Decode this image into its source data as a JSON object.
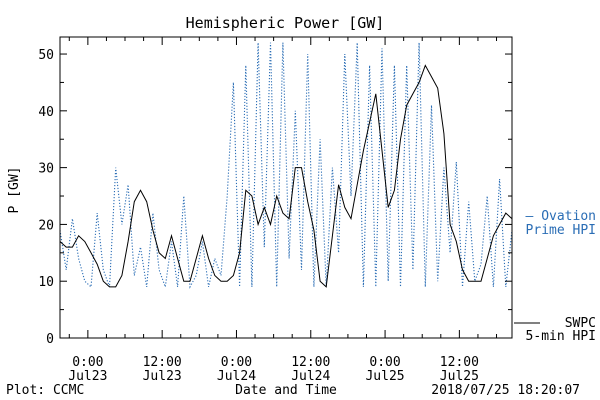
{
  "chart_data": {
    "type": "line",
    "title": "Hemispheric Power [GW]",
    "xlabel": "Date and Time",
    "ylabel": "P [GW]",
    "ylim": [
      0,
      53
    ],
    "yticks": [
      0,
      10,
      20,
      30,
      40,
      50
    ],
    "xlim_hours": [
      -4.5,
      68.5
    ],
    "x_ticks": [
      {
        "hour": 0,
        "time": "0:00",
        "date": "Jul23"
      },
      {
        "hour": 12,
        "time": "12:00",
        "date": "Jul23"
      },
      {
        "hour": 24,
        "time": "0:00",
        "date": "Jul24"
      },
      {
        "hour": 36,
        "time": "12:00",
        "date": "Jul24"
      },
      {
        "hour": 48,
        "time": "0:00",
        "date": "Jul25"
      },
      {
        "hour": 60,
        "time": "12:00",
        "date": "Jul25"
      }
    ],
    "legend": [
      {
        "line1": "— Ovation",
        "line2": "Prime HPI",
        "color": "#2a6db5",
        "style": "dotted"
      },
      {
        "line1": "SWPC",
        "line2": "5-min HPI",
        "color": "#000000",
        "style": "solid"
      }
    ],
    "series": [
      {
        "name": "SWPC 5-min HPI",
        "color": "#000000",
        "style": "solid",
        "x": [
          -4.5,
          -3.5,
          -2.5,
          -1.5,
          -0.5,
          0.5,
          1.5,
          2.5,
          3.5,
          4.5,
          5.5,
          6.5,
          7.5,
          8.5,
          9.5,
          10.5,
          11.5,
          12.5,
          13.5,
          14.5,
          15.5,
          16.5,
          17.5,
          18.5,
          19.5,
          20.5,
          21.5,
          22.5,
          23.5,
          24.5,
          25.5,
          26.5,
          27.5,
          28.5,
          29.5,
          30.5,
          31.5,
          32.5,
          33.5,
          34.5,
          35.5,
          36.5,
          37.5,
          38.5,
          39.5,
          40.5,
          41.5,
          42.5,
          43.5,
          44.5,
          45.5,
          46.5,
          47.5,
          48.5,
          49.5,
          50.5,
          51.5,
          52.5,
          53.5,
          54.5,
          55.5,
          56.5,
          57.5,
          58.5,
          59.5,
          60.5,
          61.5,
          62.5,
          63.5,
          64.5,
          65.5,
          66.5,
          67.5,
          68.5
        ],
        "y": [
          17,
          16,
          16,
          18,
          17,
          15,
          13,
          10,
          9,
          9,
          11,
          17,
          24,
          26,
          24,
          19,
          15,
          14,
          18,
          14,
          10,
          10,
          14,
          18,
          14,
          11,
          10,
          10,
          11,
          15,
          26,
          25,
          20,
          23,
          20,
          25,
          22,
          21,
          30,
          30,
          24,
          19,
          10,
          9,
          18,
          27,
          23,
          21,
          27,
          33,
          38,
          43,
          33,
          23,
          26,
          35,
          41,
          43,
          45,
          48,
          46,
          44,
          36,
          20,
          17,
          12,
          10,
          10,
          10,
          14,
          18,
          20,
          22,
          21
        ]
      },
      {
        "name": "Ovation Prime HPI",
        "color": "#2a6db5",
        "style": "dotted",
        "x": [
          -4.5,
          -3.5,
          -2.5,
          -1.5,
          -0.5,
          0.5,
          1.5,
          2.5,
          3.5,
          4.5,
          5.5,
          6.5,
          7.5,
          8.5,
          9.5,
          10.5,
          11.5,
          12.5,
          13.5,
          14.5,
          15.5,
          16.5,
          17.5,
          18.5,
          19.5,
          20.5,
          21.5,
          22.5,
          23.5,
          24.5,
          25.5,
          26.5,
          27.5,
          28.5,
          29.5,
          30.5,
          31.5,
          32.5,
          33.5,
          34.5,
          35.5,
          36.5,
          37.5,
          38.5,
          39.5,
          40.5,
          41.5,
          42.5,
          43.5,
          44.5,
          45.5,
          46.5,
          47.5,
          48.5,
          49.5,
          50.5,
          51.5,
          52.5,
          53.5,
          54.5,
          55.5,
          56.5,
          57.5,
          58.5,
          59.5,
          60.5,
          61.5,
          62.5,
          63.5,
          64.5,
          65.5,
          66.5,
          67.5,
          68.5
        ],
        "y": [
          19,
          12,
          21,
          14,
          10,
          9,
          22,
          12,
          9,
          30,
          20,
          27,
          11,
          16,
          9,
          22,
          12,
          9,
          17,
          9,
          25,
          9,
          11,
          17,
          9,
          14,
          11,
          25,
          45,
          9,
          48,
          9,
          52,
          16,
          52,
          9,
          52,
          14,
          40,
          12,
          50,
          9,
          35,
          9,
          30,
          15,
          50,
          25,
          52,
          9,
          48,
          9,
          51,
          10,
          48,
          9,
          48,
          12,
          52,
          9,
          41,
          10,
          30,
          15,
          31,
          9,
          24,
          10,
          13,
          25,
          9,
          28,
          9,
          19
        ]
      }
    ]
  }
}
